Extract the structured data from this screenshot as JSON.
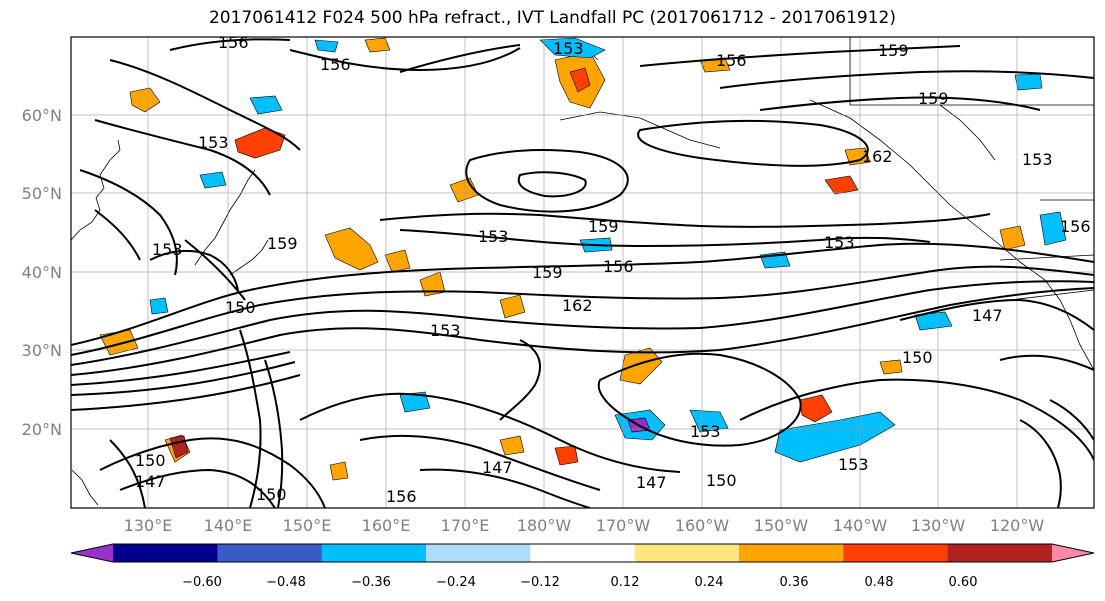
{
  "title": "2017061412 F024 500 hPa refract., IVT Landfall PC (2017061712 - 2017061912)",
  "latitude_labels": [
    "20°N",
    "30°N",
    "40°N",
    "50°N",
    "60°N"
  ],
  "longitude_labels": [
    "130°E",
    "140°E",
    "150°E",
    "160°E",
    "170°E",
    "180°W",
    "170°W",
    "160°W",
    "150°W",
    "140°W",
    "130°W",
    "120°W"
  ],
  "colorbar": {
    "colors": [
      "#9932cc",
      "#00008b",
      "#3a5bc7",
      "#00bfff",
      "#afdcfa",
      "#ffffff",
      "#ffe680",
      "#ffa500",
      "#ff4000",
      "#b22222",
      "#ff88aa"
    ],
    "tick_labels": [
      "−0.60",
      "−0.48",
      "−0.36",
      "−0.24",
      "−0.12",
      "0.12",
      "0.24",
      "0.36",
      "0.48",
      "0.60"
    ]
  },
  "contour_labels": [
    "156",
    "156",
    "156",
    "159",
    "159",
    "162",
    "153",
    "153",
    "153",
    "159",
    "153",
    "159",
    "156",
    "162",
    "153",
    "150",
    "147",
    "150",
    "147",
    "147",
    "147",
    "150",
    "153",
    "159",
    "156",
    "150",
    "150",
    "156",
    "153",
    "153",
    "153"
  ]
}
